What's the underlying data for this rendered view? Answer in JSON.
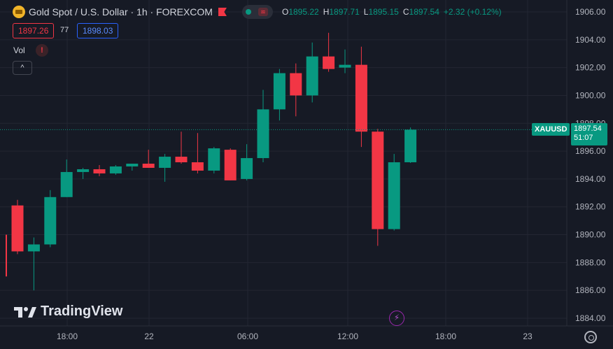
{
  "header": {
    "symbol_title": "Gold Spot / U.S. Dollar · 1h · FOREXCOM",
    "symbol_icon": "gold-bars-icon",
    "ohlc": {
      "open_label": "O",
      "open": "1895.22",
      "high_label": "H",
      "high": "1897.71",
      "low_label": "L",
      "low": "1895.15",
      "close_label": "C",
      "close": "1897.54",
      "change": "+2.32 (+0.12%)"
    },
    "sell_price": "1897.26",
    "spread": "77",
    "buy_price": "1898.03",
    "volume_label": "Vol",
    "warning_glyph": "!",
    "collapse_glyph": "^"
  },
  "branding": {
    "logo_text": "TradingView"
  },
  "price_tag": {
    "symbol": "XAUUSD",
    "price": "1897.54",
    "countdown": "51:07"
  },
  "colors": {
    "up": "#089981",
    "down": "#f23645",
    "background": "#161a25"
  },
  "chart_data": {
    "type": "candlestick",
    "symbol": "XAUUSD",
    "timeframe": "1h",
    "x_ticks": [
      "18:00",
      "22",
      "06:00",
      "12:00",
      "18:00",
      "23"
    ],
    "y_ticks": [
      "1906.00",
      "1904.00",
      "1902.00",
      "1900.00",
      "1898.00",
      "1896.00",
      "1894.00",
      "1892.00",
      "1890.00",
      "1888.00",
      "1886.00",
      "1884.00"
    ],
    "ylim": [
      1883.6,
      1906.4
    ],
    "last_price": 1897.54,
    "candles": [
      {
        "o": 1892.1,
        "h": 1892.5,
        "l": 1888.6,
        "c": 1888.8
      },
      {
        "o": 1888.8,
        "h": 1889.8,
        "l": 1886.0,
        "c": 1889.3
      },
      {
        "o": 1889.3,
        "h": 1893.2,
        "l": 1889.1,
        "c": 1892.7
      },
      {
        "o": 1892.7,
        "h": 1895.4,
        "l": 1892.7,
        "c": 1894.5
      },
      {
        "o": 1894.5,
        "h": 1894.8,
        "l": 1894.0,
        "c": 1894.7
      },
      {
        "o": 1894.7,
        "h": 1895.0,
        "l": 1894.2,
        "c": 1894.4
      },
      {
        "o": 1894.4,
        "h": 1895.0,
        "l": 1894.3,
        "c": 1894.9
      },
      {
        "o": 1894.9,
        "h": 1895.1,
        "l": 1894.6,
        "c": 1895.1
      },
      {
        "o": 1895.1,
        "h": 1896.1,
        "l": 1894.8,
        "c": 1894.8
      },
      {
        "o": 1894.8,
        "h": 1895.8,
        "l": 1893.8,
        "c": 1895.6
      },
      {
        "o": 1895.6,
        "h": 1897.4,
        "l": 1895.1,
        "c": 1895.2
      },
      {
        "o": 1895.2,
        "h": 1897.3,
        "l": 1894.4,
        "c": 1894.6
      },
      {
        "o": 1894.6,
        "h": 1896.3,
        "l": 1894.4,
        "c": 1896.2
      },
      {
        "o": 1896.1,
        "h": 1896.2,
        "l": 1893.9,
        "c": 1893.9
      },
      {
        "o": 1894.0,
        "h": 1896.5,
        "l": 1893.9,
        "c": 1895.5
      },
      {
        "o": 1895.5,
        "h": 1900.4,
        "l": 1895.2,
        "c": 1899.0
      },
      {
        "o": 1899.0,
        "h": 1901.9,
        "l": 1898.2,
        "c": 1901.6
      },
      {
        "o": 1901.6,
        "h": 1902.3,
        "l": 1898.5,
        "c": 1900.0
      },
      {
        "o": 1900.0,
        "h": 1903.8,
        "l": 1899.5,
        "c": 1902.8
      },
      {
        "o": 1902.8,
        "h": 1904.5,
        "l": 1901.7,
        "c": 1901.9
      },
      {
        "o": 1902.0,
        "h": 1903.3,
        "l": 1901.6,
        "c": 1902.2
      },
      {
        "o": 1902.2,
        "h": 1903.5,
        "l": 1896.3,
        "c": 1897.4
      },
      {
        "o": 1897.4,
        "h": 1897.6,
        "l": 1889.2,
        "c": 1890.4
      },
      {
        "o": 1890.4,
        "h": 1895.8,
        "l": 1890.3,
        "c": 1895.2
      },
      {
        "o": 1895.2,
        "h": 1897.7,
        "l": 1895.15,
        "c": 1897.54
      }
    ]
  }
}
